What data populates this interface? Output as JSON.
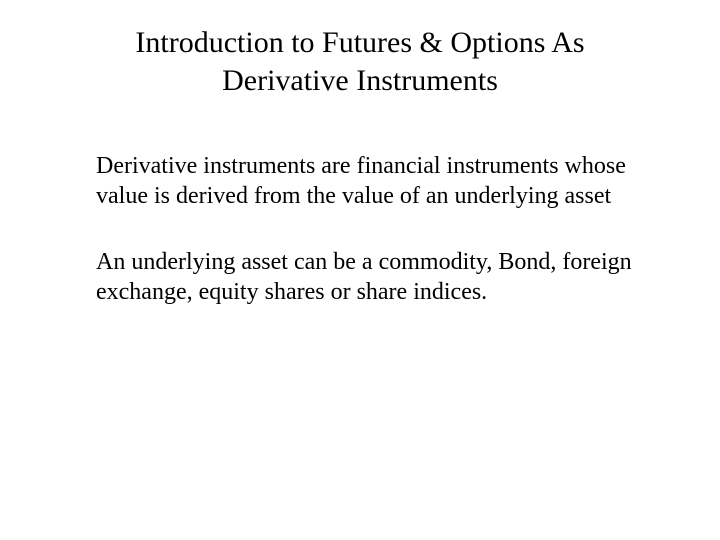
{
  "slide": {
    "title": "Introduction to Futures & Options As Derivative Instruments",
    "paragraph1": "Derivative instruments are financial instruments whose value is derived from the value of an underlying asset",
    "paragraph2": "An underlying asset can be a commodity, Bond, foreign exchange, equity shares or share indices.",
    "background_color": "#ffffff",
    "text_color": "#000000",
    "font_family": "Times New Roman",
    "title_fontsize": 30,
    "body_fontsize": 24
  }
}
